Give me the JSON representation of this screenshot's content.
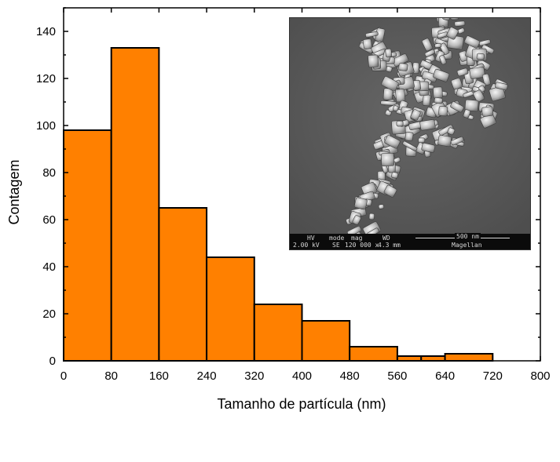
{
  "chart_data": {
    "type": "bar",
    "bin_edges": [
      0,
      80,
      160,
      240,
      320,
      400,
      480,
      560,
      600,
      640,
      720
    ],
    "values": [
      98,
      133,
      65,
      44,
      24,
      17,
      6,
      2,
      2,
      3
    ],
    "xlabel": "Tamanho de partícula (nm)",
    "ylabel": "Contagem",
    "xlim": [
      0,
      800
    ],
    "ylim": [
      0,
      150
    ],
    "xticks": [
      0,
      80,
      160,
      240,
      320,
      400,
      480,
      560,
      640,
      720,
      800
    ],
    "yticks": [
      0,
      20,
      40,
      60,
      80,
      100,
      120,
      140
    ],
    "grid": false,
    "bar_color": "#ff8000",
    "edge_color": "#000000"
  },
  "inset": {
    "kind": "SEM micrograph",
    "databar": {
      "hv_label": "HV",
      "hv_value": "2.00 kV",
      "mode_label": "mode",
      "mode_value": "SE",
      "mag_label": "mag",
      "mag_value": "120 000 x",
      "wd_label": "WD",
      "wd_value": "4.3 mm",
      "scale_label": "500 nm",
      "instrument": "Magellan"
    }
  }
}
